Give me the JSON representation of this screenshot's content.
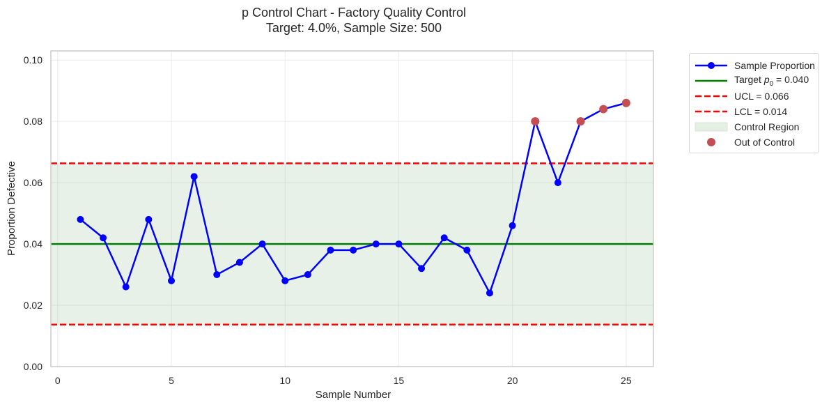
{
  "chart_data": {
    "type": "line",
    "title": "p Control Chart - Factory Quality Control",
    "subtitle": "Target: 4.0%, Sample Size: 500",
    "xlabel": "Sample Number",
    "ylabel": "Proportion Defective",
    "xlim": [
      -0.3,
      26.2
    ],
    "ylim": [
      0.0,
      0.103
    ],
    "xticks": [
      0,
      5,
      10,
      15,
      20,
      25
    ],
    "xtick_labels": [
      "0",
      "5",
      "10",
      "15",
      "20",
      "25"
    ],
    "yticks": [
      0.0,
      0.02,
      0.04,
      0.06,
      0.08,
      0.1
    ],
    "ytick_labels": [
      "0.00",
      "0.02",
      "0.04",
      "0.06",
      "0.08",
      "0.10"
    ],
    "grid": true,
    "legend_position": "outside upper right",
    "x": [
      1,
      2,
      3,
      4,
      5,
      6,
      7,
      8,
      9,
      10,
      11,
      12,
      13,
      14,
      15,
      16,
      17,
      18,
      19,
      20,
      21,
      22,
      23,
      24,
      25
    ],
    "series": [
      {
        "name": "Sample Proportion",
        "color": "#0000ff",
        "values": [
          0.048,
          0.042,
          0.026,
          0.048,
          0.028,
          0.062,
          0.03,
          0.034,
          0.04,
          0.028,
          0.03,
          0.038,
          0.038,
          0.04,
          0.04,
          0.032,
          0.042,
          0.038,
          0.024,
          0.046,
          0.08,
          0.06,
          0.08,
          0.084,
          0.086
        ]
      }
    ],
    "reference_lines": [
      {
        "name": "Target p0 = 0.040",
        "value": 0.04,
        "color": "#008000",
        "style": "solid"
      },
      {
        "name": "UCL = 0.066",
        "value": 0.0663,
        "color": "#ff0000",
        "style": "dashed"
      },
      {
        "name": "LCL = 0.014",
        "value": 0.0137,
        "color": "#ff0000",
        "style": "dashed"
      }
    ],
    "control_region": {
      "name": "Control Region",
      "from": 0.0137,
      "to": 0.0663,
      "color": "#e4f0e4"
    },
    "out_of_control": {
      "name": "Out of Control",
      "color": "#c44e52",
      "x": [
        21,
        23,
        24,
        25
      ],
      "values": [
        0.08,
        0.08,
        0.084,
        0.086
      ]
    },
    "legend": [
      {
        "label": "Sample Proportion",
        "kind": "line-marker",
        "color": "#0000ff"
      },
      {
        "label_prefix": "Target ",
        "label_italic": "p",
        "label_sub": "0",
        "label_suffix": " = 0.040",
        "kind": "line",
        "color": "#008000"
      },
      {
        "label": "UCL = 0.066",
        "kind": "dashed",
        "color": "#ff0000"
      },
      {
        "label": "LCL = 0.014",
        "kind": "dashed",
        "color": "#ff0000"
      },
      {
        "label": "Control Region",
        "kind": "patch",
        "color": "#e4f0e4"
      },
      {
        "label": "Out of Control",
        "kind": "marker",
        "color": "#c44e52"
      }
    ]
  }
}
